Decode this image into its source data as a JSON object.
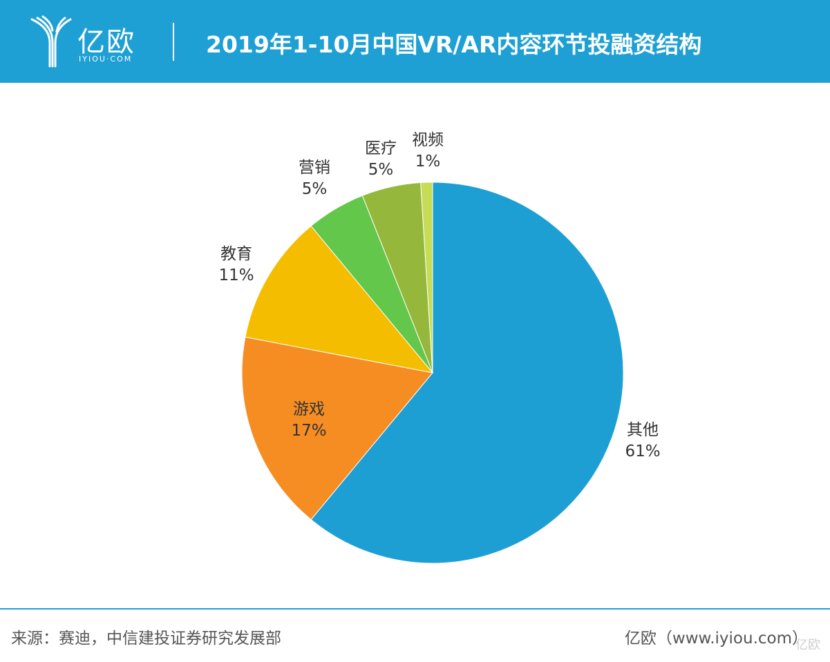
{
  "header": {
    "logo_cn": "亿欧",
    "logo_en": "IYIOU·COM",
    "title": "2019年1-10月中国VR/AR内容环节投融资结构"
  },
  "chart_data": {
    "type": "pie",
    "title": "2019年1-10月中国VR/AR内容环节投融资结构",
    "slices": [
      {
        "label": "其他",
        "value": 61,
        "value_label": "61%",
        "color": "#1e9fd4"
      },
      {
        "label": "游戏",
        "value": 17,
        "value_label": "17%",
        "color": "#f58d22"
      },
      {
        "label": "教育",
        "value": 11,
        "value_label": "11%",
        "color": "#f5bd00"
      },
      {
        "label": "营销",
        "value": 5,
        "value_label": "5%",
        "color": "#62c74a"
      },
      {
        "label": "医疗",
        "value": 5,
        "value_label": "5%",
        "color": "#95b83c"
      },
      {
        "label": "视频",
        "value": 1,
        "value_label": "1%",
        "color": "#c6dc56"
      }
    ],
    "start": "12 o'clock",
    "direction": "clockwise"
  },
  "footer": {
    "source": "来源：赛迪，中信建投证券研究发展部",
    "credit": "亿欧（www.iyiou.com）",
    "watermark": "亿欧"
  }
}
